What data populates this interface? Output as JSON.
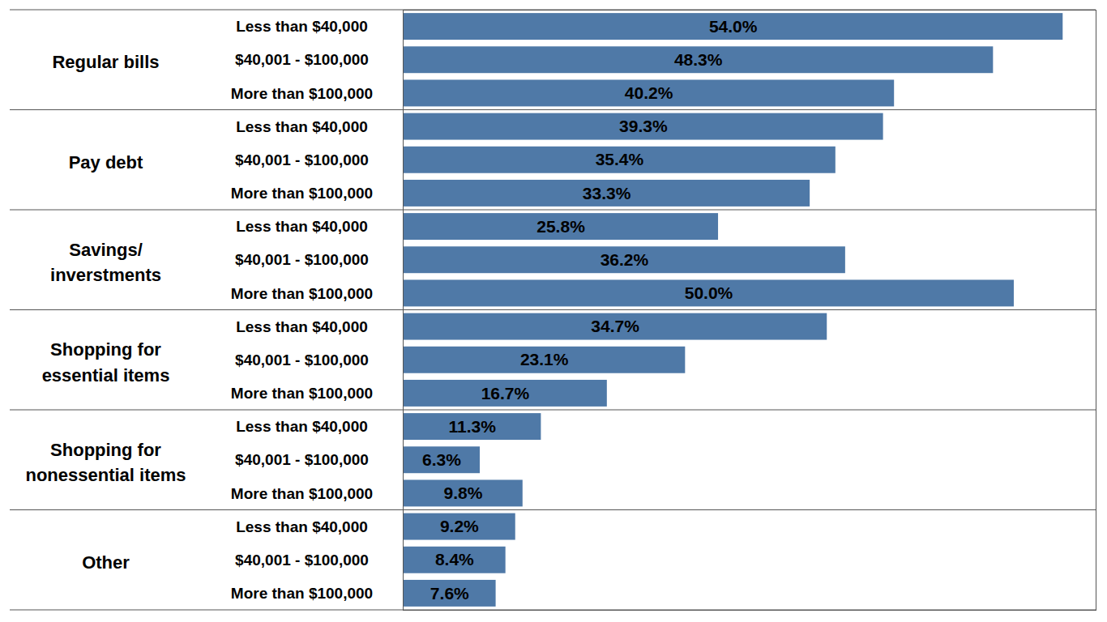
{
  "chart_data": {
    "type": "bar",
    "orientation": "horizontal",
    "categories": [
      "Regular bills",
      "Pay debt",
      "Savings/\ninverstments",
      "Shopping for\nessential items",
      "Shopping for\nnonessential items",
      "Other"
    ],
    "series": [
      {
        "name": "Less than $40,000",
        "color": "#4f79a7",
        "values": [
          54.0,
          39.3,
          25.8,
          34.7,
          11.3,
          9.2
        ],
        "value_labels": [
          "54.0%",
          "39.3%",
          "25.8%",
          "34.7%",
          "11.3%",
          "9.2%"
        ]
      },
      {
        "name": "$40,001 - $100,000",
        "color": "#4f79a7",
        "values": [
          48.3,
          35.4,
          36.2,
          23.1,
          6.3,
          8.4
        ],
        "value_labels": [
          "48.3%",
          "35.4%",
          "36.2%",
          "23.1%",
          "6.3%",
          "8.4%"
        ]
      },
      {
        "name": "More than $100,000",
        "color": "#4f79a7",
        "values": [
          40.2,
          33.3,
          50.0,
          16.7,
          9.8,
          7.6
        ],
        "value_labels": [
          "40.2%",
          "33.3%",
          "50.0%",
          "16.7%",
          "9.8%",
          "7.6%"
        ]
      }
    ],
    "xlim": [
      0,
      56.7
    ],
    "data_labels": true,
    "tick_labels": "y",
    "grid": false
  }
}
